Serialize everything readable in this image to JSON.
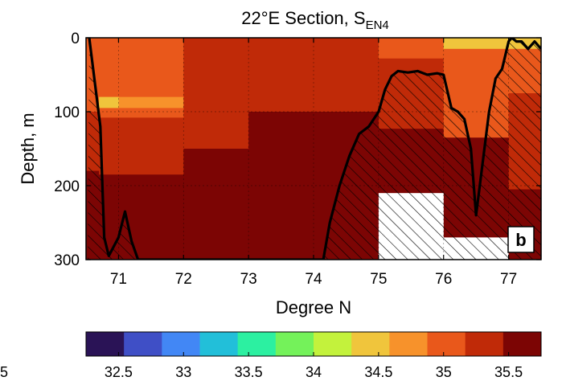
{
  "title": {
    "main": "22°E  Section,  S",
    "subscript": "EN4"
  },
  "panel_label": "b",
  "colorbar": {
    "colors": [
      "#2a1356",
      "#3f4fc6",
      "#4287f5",
      "#22bfd9",
      "#2cf0a1",
      "#74f25a",
      "#c3f23c",
      "#f0c53c",
      "#f7922b",
      "#e9581b",
      "#c02a08",
      "#7c0504"
    ],
    "ticks": [
      "32.5",
      "33",
      "33.5",
      "34",
      "34.5",
      "35",
      "35.5"
    ],
    "partial_left_tick": "5"
  },
  "chart_data": {
    "type": "heatmap",
    "title": "22°E Section, S_EN4",
    "xlabel": "Degree N",
    "ylabel": "Depth, m",
    "xlim": [
      70.5,
      77.5
    ],
    "ylim": [
      300,
      0
    ],
    "y_reversed": true,
    "xticks": [
      71,
      72,
      73,
      74,
      75,
      76,
      77
    ],
    "yticks": [
      0,
      100,
      200,
      300
    ],
    "colorbar_range": [
      32.25,
      35.75
    ],
    "colorbar_step": 0.25,
    "cells": [
      {
        "x": [
          70.5,
          70.7
        ],
        "y": [
          0,
          100
        ],
        "salinity": 34.7
      },
      {
        "x": [
          70.5,
          70.7
        ],
        "y": [
          100,
          180
        ],
        "salinity": 34.9
      },
      {
        "x": [
          70.5,
          70.7
        ],
        "y": [
          180,
          300
        ],
        "salinity": 35.1
      },
      {
        "x": [
          70.7,
          71.0
        ],
        "y": [
          0,
          80
        ],
        "salinity": 34.55
      },
      {
        "x": [
          70.7,
          71.0
        ],
        "y": [
          80,
          95
        ],
        "salinity": 34.1
      },
      {
        "x": [
          70.7,
          71.0
        ],
        "y": [
          95,
          108
        ],
        "salinity": 34.6
      },
      {
        "x": [
          70.7,
          71.0
        ],
        "y": [
          108,
          185
        ],
        "salinity": 34.9
      },
      {
        "x": [
          70.7,
          71.0
        ],
        "y": [
          185,
          300
        ],
        "salinity": 35.1
      },
      {
        "x": [
          71.0,
          72.0
        ],
        "y": [
          0,
          80
        ],
        "salinity": 34.7
      },
      {
        "x": [
          71.0,
          72.0
        ],
        "y": [
          80,
          95
        ],
        "salinity": 34.45
      },
      {
        "x": [
          71.0,
          72.0
        ],
        "y": [
          95,
          108
        ],
        "salinity": 34.7
      },
      {
        "x": [
          71.0,
          72.0
        ],
        "y": [
          108,
          185
        ],
        "salinity": 34.9
      },
      {
        "x": [
          71.0,
          72.0
        ],
        "y": [
          185,
          300
        ],
        "salinity": 35.1
      },
      {
        "x": [
          72.0,
          73.0
        ],
        "y": [
          0,
          150
        ],
        "salinity": 34.9
      },
      {
        "x": [
          72.0,
          73.0
        ],
        "y": [
          150,
          300
        ],
        "salinity": 35.1
      },
      {
        "x": [
          73.0,
          74.0
        ],
        "y": [
          0,
          100
        ],
        "salinity": 34.9
      },
      {
        "x": [
          73.0,
          74.0
        ],
        "y": [
          100,
          300
        ],
        "salinity": 35.1
      },
      {
        "x": [
          74.0,
          75.0
        ],
        "y": [
          0,
          100
        ],
        "salinity": 34.9
      },
      {
        "x": [
          74.0,
          75.0
        ],
        "y": [
          100,
          300
        ],
        "salinity": 35.1
      },
      {
        "x": [
          75.0,
          76.0
        ],
        "y": [
          0,
          28
        ],
        "salinity": 34.7
      },
      {
        "x": [
          75.0,
          76.0
        ],
        "y": [
          28,
          123
        ],
        "salinity": 34.9
      },
      {
        "x": [
          75.0,
          76.0
        ],
        "y": [
          123,
          210
        ],
        "salinity": 35.1
      },
      {
        "x": [
          76.0,
          77.0
        ],
        "y": [
          0,
          15
        ],
        "salinity": 34.2
      },
      {
        "x": [
          76.0,
          77.0
        ],
        "y": [
          15,
          135
        ],
        "salinity": 34.7
      },
      {
        "x": [
          76.0,
          77.0
        ],
        "y": [
          135,
          270
        ],
        "salinity": 35.1
      },
      {
        "x": [
          77.0,
          77.5
        ],
        "y": [
          0,
          15
        ],
        "salinity": 34.2
      },
      {
        "x": [
          77.0,
          77.5
        ],
        "y": [
          15,
          75
        ],
        "salinity": 34.7
      },
      {
        "x": [
          77.0,
          77.5
        ],
        "y": [
          75,
          205
        ],
        "salinity": 34.9
      },
      {
        "x": [
          77.0,
          77.5
        ],
        "y": [
          205,
          300
        ],
        "salinity": 35.1
      }
    ],
    "no_data_regions": [
      {
        "x": [
          75.0,
          76.0
        ],
        "y": [
          210,
          300
        ]
      },
      {
        "x": [
          76.0,
          77.0
        ],
        "y": [
          270,
          300
        ]
      },
      {
        "x": [
          77.0,
          77.5
        ],
        "y": [
          300,
          300
        ]
      }
    ],
    "bathymetry": {
      "x": [
        70.55,
        70.72,
        70.78,
        70.85,
        71.0,
        71.1,
        71.2,
        71.3,
        71.32,
        74.15,
        74.25,
        74.4,
        74.55,
        74.7,
        74.85,
        75.0,
        75.1,
        75.2,
        75.3,
        75.45,
        75.6,
        75.75,
        75.9,
        76.0,
        76.12,
        76.22,
        76.32,
        76.42,
        76.5,
        76.6,
        76.7,
        76.8,
        76.9,
        77.0,
        77.05,
        77.12,
        77.2,
        77.3,
        77.4,
        77.5
      ],
      "depth": [
        0,
        120,
        270,
        295,
        270,
        235,
        275,
        300,
        300,
        300,
        250,
        200,
        160,
        130,
        120,
        100,
        70,
        52,
        45,
        47,
        45,
        50,
        48,
        50,
        95,
        100,
        110,
        150,
        240,
        170,
        100,
        55,
        42,
        5,
        0,
        5,
        5,
        15,
        5,
        15
      ]
    }
  }
}
